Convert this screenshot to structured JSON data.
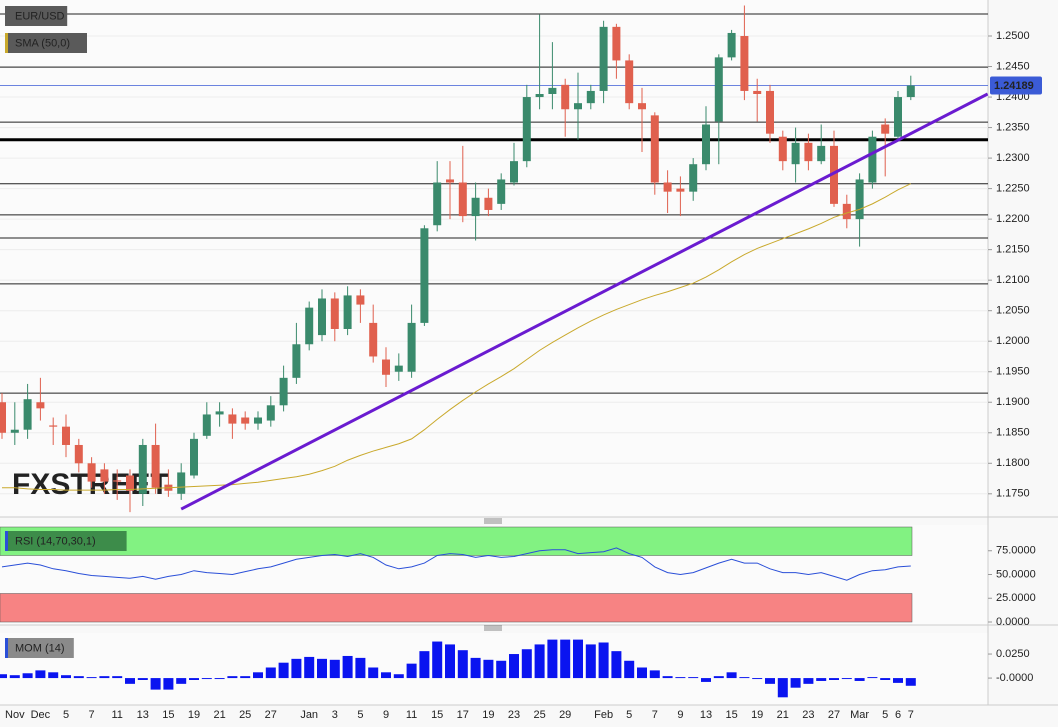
{
  "chart_data": [
    {
      "type": "candlestick",
      "title": "EUR/USD",
      "watermark": "FXSTREET",
      "categories": [
        null,
        "Nov",
        null,
        "Dec",
        null,
        "5",
        null,
        "7",
        null,
        "11",
        null,
        "13",
        null,
        "15",
        null,
        "19",
        null,
        "21",
        null,
        "25",
        null,
        "27",
        null,
        null,
        "Jan",
        null,
        "3",
        null,
        "5",
        null,
        "9",
        null,
        "11",
        null,
        "15",
        null,
        "17",
        null,
        "19",
        null,
        "23",
        null,
        "25",
        null,
        "29",
        null,
        null,
        "Feb",
        null,
        "5",
        null,
        "7",
        null,
        "9",
        null,
        "13",
        null,
        "15",
        null,
        "19",
        null,
        "21",
        null,
        "23",
        null,
        "27",
        null,
        "Mar",
        null,
        "5",
        "6",
        "7"
      ],
      "open": [
        1.19,
        1.185,
        1.1855,
        1.19,
        1.1862,
        1.186,
        1.183,
        1.18,
        1.179,
        1.1772,
        1.178,
        1.175,
        1.183,
        1.1765,
        1.175,
        1.178,
        1.1845,
        1.188,
        1.188,
        1.1875,
        1.1865,
        1.187,
        1.1895,
        1.194,
        1.1995,
        1.201,
        1.207,
        1.202,
        1.2075,
        1.203,
        1.197,
        1.195,
        1.195,
        1.203,
        1.219,
        1.2265,
        1.226,
        1.2205,
        1.2235,
        1.2225,
        1.226,
        1.2295,
        1.24,
        1.2405,
        1.242,
        1.238,
        1.239,
        1.241,
        1.2515,
        1.246,
        1.239,
        1.237,
        1.226,
        1.225,
        1.2245,
        1.229,
        1.236,
        1.2465,
        1.25,
        1.241,
        1.241,
        1.2335,
        1.229,
        1.2325,
        1.2295,
        1.232,
        1.2225,
        1.22,
        1.226,
        1.2355,
        1.2335,
        1.24
      ],
      "high": [
        1.1915,
        1.19,
        1.193,
        1.194,
        1.1875,
        1.188,
        1.184,
        1.181,
        1.18,
        1.179,
        1.179,
        1.184,
        1.1865,
        1.179,
        1.18,
        1.185,
        1.19,
        1.19,
        1.189,
        1.1885,
        1.1885,
        1.191,
        1.196,
        1.203,
        1.2065,
        1.2085,
        1.208,
        1.209,
        1.2085,
        1.206,
        1.199,
        1.198,
        1.206,
        1.219,
        1.2295,
        1.2295,
        1.232,
        1.226,
        1.225,
        1.2275,
        1.2325,
        1.242,
        1.2535,
        1.249,
        1.243,
        1.244,
        1.242,
        1.2525,
        1.252,
        1.247,
        1.2415,
        1.2375,
        1.228,
        1.227,
        1.23,
        1.2385,
        1.247,
        1.251,
        1.255,
        1.243,
        1.242,
        1.2345,
        1.235,
        1.234,
        1.2355,
        1.2345,
        1.224,
        1.2275,
        1.2345,
        1.2365,
        1.241,
        1.2435
      ],
      "low": [
        1.184,
        1.183,
        1.184,
        1.187,
        1.183,
        1.181,
        1.1785,
        1.176,
        1.175,
        1.174,
        1.172,
        1.173,
        1.175,
        1.1745,
        1.174,
        1.1775,
        1.184,
        1.186,
        1.184,
        1.1855,
        1.1855,
        1.186,
        1.1885,
        1.193,
        1.1985,
        1.2,
        1.2,
        1.201,
        1.203,
        1.1965,
        1.1925,
        1.1935,
        1.194,
        1.2025,
        1.218,
        1.22,
        1.2195,
        1.2165,
        1.2205,
        1.2215,
        1.2255,
        1.2285,
        1.238,
        1.238,
        1.2335,
        1.233,
        1.238,
        1.239,
        1.243,
        1.238,
        1.231,
        1.224,
        1.221,
        1.2205,
        1.223,
        1.228,
        1.229,
        1.246,
        1.2395,
        1.236,
        1.2325,
        1.228,
        1.226,
        1.228,
        1.229,
        1.222,
        1.2185,
        1.2155,
        1.225,
        1.227,
        1.233,
        1.2395
      ],
      "close": [
        1.185,
        1.1855,
        1.1905,
        1.189,
        1.186,
        1.183,
        1.18,
        1.177,
        1.177,
        1.177,
        1.1755,
        1.183,
        1.176,
        1.1755,
        1.1785,
        1.184,
        1.188,
        1.1885,
        1.1865,
        1.1865,
        1.1875,
        1.1895,
        1.194,
        1.1995,
        1.2055,
        1.207,
        1.202,
        1.2075,
        1.206,
        1.1975,
        1.1945,
        1.196,
        1.203,
        1.2185,
        1.226,
        1.226,
        1.2205,
        1.2235,
        1.2215,
        1.2265,
        1.2295,
        1.24,
        1.2405,
        1.2415,
        1.238,
        1.239,
        1.241,
        1.2515,
        1.246,
        1.239,
        1.238,
        1.226,
        1.2245,
        1.2245,
        1.229,
        1.2355,
        1.2465,
        1.2505,
        1.241,
        1.2405,
        1.234,
        1.2295,
        1.2325,
        1.2295,
        1.232,
        1.2225,
        1.22,
        1.2265,
        1.2335,
        1.234,
        1.24,
        1.24189
      ],
      "up_color": "#3a8a6c",
      "down_color": "#e0604e",
      "series": [
        {
          "name": "SMA (50,0)",
          "color": "#c9a92c",
          "values": [
            1.176,
            1.176,
            1.1758,
            1.1757,
            1.1757,
            1.1756,
            1.1756,
            1.1756,
            1.1756,
            1.1757,
            1.1757,
            1.1758,
            1.1759,
            1.176,
            1.1761,
            1.1762,
            1.1763,
            1.1764,
            1.1765,
            1.1767,
            1.1769,
            1.1772,
            1.1775,
            1.1778,
            1.1782,
            1.1788,
            1.1795,
            1.1805,
            1.1813,
            1.182,
            1.1826,
            1.1832,
            1.184,
            1.1855,
            1.1872,
            1.1888,
            1.1903,
            1.1917,
            1.193,
            1.1942,
            1.1955,
            1.197,
            1.1985,
            1.1998,
            1.201,
            1.2022,
            1.2033,
            1.2043,
            1.2052,
            1.206,
            1.2068,
            1.2075,
            1.2081,
            1.2088,
            1.2095,
            1.2105,
            1.2117,
            1.213,
            1.2142,
            1.2152,
            1.216,
            1.2168,
            1.2176,
            1.2184,
            1.2193,
            1.2203,
            1.221,
            1.2216,
            1.2225,
            1.2236,
            1.2248,
            1.2258
          ]
        }
      ],
      "levels": [
        1.2536,
        1.2449,
        1.2359,
        1.2258,
        1.2207,
        1.2169,
        1.2094,
        1.1915
      ],
      "key_level": 1.233,
      "trendline": {
        "x": [
          14,
          77
        ],
        "y": [
          1.1725,
          1.2405
        ],
        "color": "#6a1bd0"
      },
      "last_price": {
        "value": 1.24189,
        "label": "1.24189"
      },
      "ylim": [
        1.1712,
        1.2559
      ],
      "yticks": [
        {
          "value": 1.175,
          "label": "1.1750"
        },
        {
          "value": 1.18,
          "label": "1.1800"
        },
        {
          "value": 1.185,
          "label": "1.1850"
        },
        {
          "value": 1.19,
          "label": "1.1900"
        },
        {
          "value": 1.195,
          "label": "1.1950"
        },
        {
          "value": 1.2,
          "label": "1.2000"
        },
        {
          "value": 1.205,
          "label": "1.2050"
        },
        {
          "value": 1.21,
          "label": "1.2100"
        },
        {
          "value": 1.215,
          "label": "1.2150"
        },
        {
          "value": 1.22,
          "label": "1.2200"
        },
        {
          "value": 1.225,
          "label": "1.2250"
        },
        {
          "value": 1.23,
          "label": "1.2300"
        },
        {
          "value": 1.235,
          "label": "1.2350"
        },
        {
          "value": 1.24,
          "label": "1.2400"
        },
        {
          "value": 1.245,
          "label": "1.2450"
        },
        {
          "value": 1.25,
          "label": "1.2500"
        }
      ],
      "grid": true
    },
    {
      "type": "line",
      "title": "RSI (14,70,30,1)",
      "series": [
        {
          "color": "#2a4fd8",
          "values": [
            58,
            60,
            62,
            60,
            56,
            54,
            51,
            49,
            48,
            47,
            46,
            48,
            45,
            48,
            50,
            54,
            52,
            51,
            50,
            53,
            56,
            58,
            62,
            66,
            68,
            70,
            71,
            69,
            72,
            68,
            60,
            56,
            58,
            62,
            70,
            72,
            71,
            68,
            70,
            68,
            69,
            72,
            75,
            76,
            76,
            72,
            73,
            74,
            78,
            72,
            68,
            58,
            52,
            50,
            52,
            57,
            62,
            66,
            62,
            62,
            56,
            52,
            52,
            50,
            52,
            48,
            44,
            50,
            54,
            55,
            58,
            59
          ]
        }
      ],
      "bands": [
        {
          "from": 70,
          "to": 100,
          "color": "#82f282"
        },
        {
          "from": 0,
          "to": 30,
          "color": "#f78383"
        }
      ],
      "ylim": [
        0,
        100
      ],
      "yticks": [
        {
          "value": 0,
          "label": "0.0000"
        },
        {
          "value": 25,
          "label": "25.0000"
        },
        {
          "value": 50,
          "label": "50.0000"
        },
        {
          "value": 75,
          "label": "75.0000"
        }
      ]
    },
    {
      "type": "bar",
      "title": "MOM (14)",
      "color": "#0a14f0",
      "values": [
        0.004,
        0.003,
        0.005,
        0.008,
        0.006,
        0.003,
        0.002,
        0.001,
        0.002,
        0.002,
        -0.006,
        -0.002,
        -0.012,
        -0.012,
        -0.006,
        -0.002,
        -0.001,
        -0.001,
        0.002,
        0.002,
        0.006,
        0.011,
        0.016,
        0.02,
        0.022,
        0.02,
        0.019,
        0.023,
        0.021,
        0.011,
        0.006,
        0.004,
        0.015,
        0.028,
        0.038,
        0.035,
        0.029,
        0.021,
        0.019,
        0.018,
        0.025,
        0.03,
        0.035,
        0.04,
        0.04,
        0.04,
        0.035,
        0.037,
        0.028,
        0.018,
        0.011,
        0.008,
        0.002,
        0.001,
        0.001,
        -0.004,
        0.002,
        0.006,
        0.001,
        -0.001,
        -0.006,
        -0.02,
        -0.01,
        -0.006,
        -0.003,
        -0.002,
        -0.001,
        -0.003,
        0.001,
        -0.002,
        -0.005,
        -0.008
      ],
      "ylim": [
        -0.028,
        0.0448
      ],
      "yticks": [
        {
          "value": 0,
          "label": "-0.0000"
        },
        {
          "value": 0.025,
          "label": "0.0250"
        }
      ]
    }
  ]
}
